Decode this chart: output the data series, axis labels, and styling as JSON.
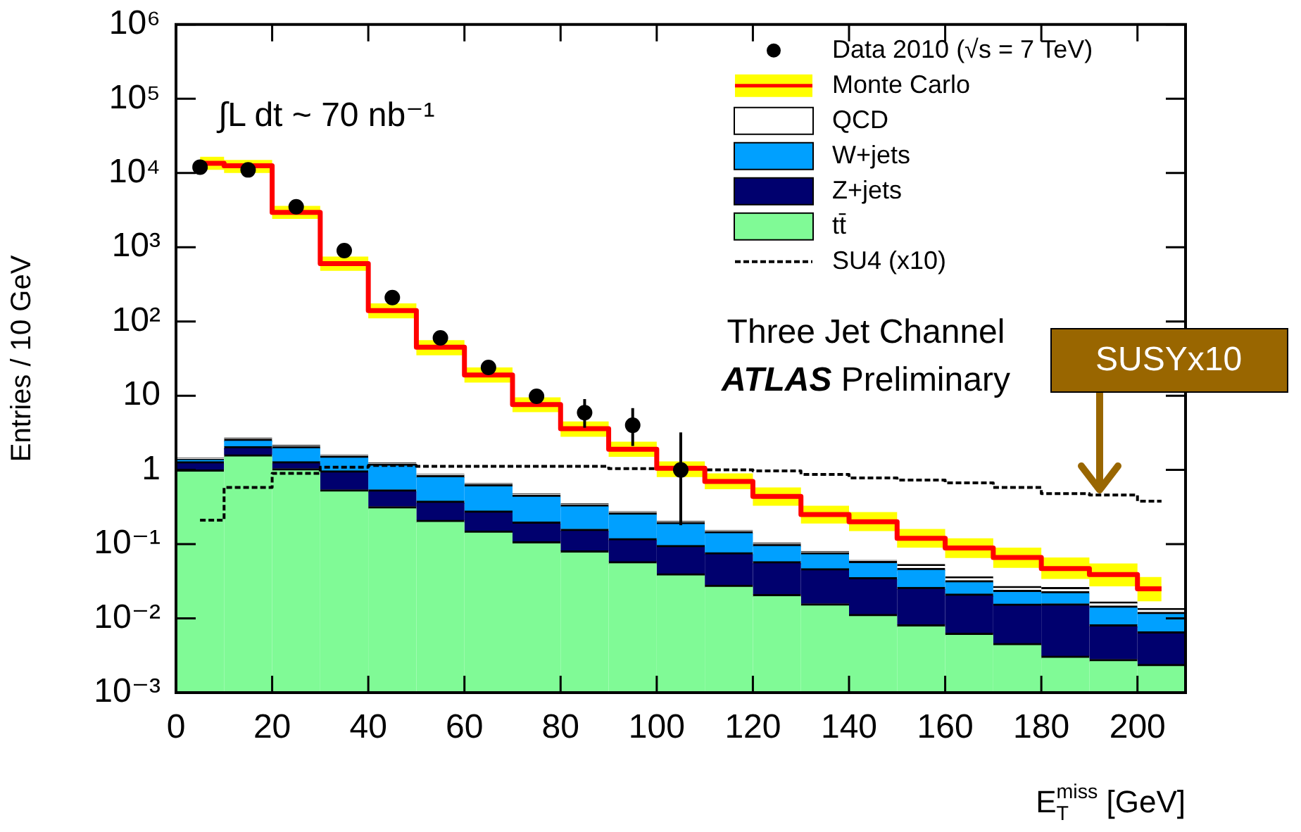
{
  "chart_data": {
    "type": "bar",
    "stacked": true,
    "xlabel": "E$_{T}$$^{miss}$ [GeV]",
    "ylabel": "Entries / 10 GeV",
    "log": "y",
    "legend": "top right",
    "x": [
      5,
      15,
      25,
      35,
      45,
      55,
      65,
      75,
      85,
      95,
      105,
      115,
      125,
      135,
      145,
      155,
      165,
      175,
      185,
      195,
      205
    ],
    "xlim": [
      0,
      210
    ],
    "xticks": [
      0,
      20,
      40,
      60,
      80,
      100,
      120,
      140,
      160,
      180,
      200
    ],
    "ylim": [
      0.001,
      1000000
    ],
    "yticks": [
      {
        "value": 0.001,
        "label": "10⁻³"
      },
      {
        "value": 0.01,
        "label": "10⁻²"
      },
      {
        "value": 0.1,
        "label": "10⁻¹"
      },
      1,
      10,
      {
        "value": 100,
        "label": "10²"
      },
      {
        "value": 1000,
        "label": "10³"
      },
      {
        "value": 10000,
        "label": "10⁴"
      },
      {
        "value": 100000,
        "label": "10⁵"
      },
      {
        "value": 1000000,
        "label": "10⁶"
      }
    ],
    "annotations": [
      "∫L dt ~ 70 nb⁻¹",
      "Three Jet Channel",
      "ATLAS Preliminary",
      {
        "text": "SUSYx10",
        "x": 192,
        "y": 0.47
      }
    ],
    "series": [
      {
        "name": "Data 2010 (√s = 7 TeV)",
        "type": "scatter",
        "marker": "circle",
        "color": "#000000",
        "values": [
          12000,
          11000,
          3500,
          900,
          210,
          60,
          24,
          9.8,
          5.9,
          4.0,
          1.0,
          null,
          null,
          null,
          null,
          null,
          null,
          null,
          null,
          null,
          null
        ],
        "errors": [
          null,
          null,
          null,
          null,
          null,
          null,
          null,
          null,
          [
            3.7,
            9.0
          ],
          [
            2.1,
            6.8
          ],
          [
            0.18,
            3.2
          ],
          null,
          null,
          null,
          null,
          null,
          null,
          null,
          null,
          null,
          null
        ]
      },
      {
        "name": "Monte Carlo",
        "type": "step",
        "color": "#ff0000",
        "values": [
          13500,
          12500,
          2950,
          600,
          140,
          45,
          19,
          7.6,
          3.6,
          1.9,
          1.05,
          0.7,
          0.44,
          0.25,
          0.2,
          0.12,
          0.089,
          0.066,
          0.047,
          0.039,
          0.025
        ],
        "lower": [
          11000,
          10000,
          2400,
          480,
          110,
          35,
          15,
          6,
          2.8,
          1.5,
          0.8,
          0.55,
          0.33,
          0.19,
          0.15,
          0.09,
          0.065,
          0.048,
          0.034,
          0.027,
          0.017
        ],
        "upper": [
          16500,
          15000,
          3600,
          750,
          175,
          56,
          24,
          9.5,
          4.5,
          2.4,
          1.3,
          0.9,
          0.58,
          0.33,
          0.27,
          0.16,
          0.12,
          0.09,
          0.066,
          0.055,
          0.036
        ]
      },
      {
        "name": "tt̄",
        "color": "#80fa96",
        "values": [
          1.0,
          1.6,
          1.04,
          0.54,
          0.32,
          0.21,
          0.15,
          0.108,
          0.081,
          0.058,
          0.04,
          0.028,
          0.021,
          0.0157,
          0.0113,
          0.0082,
          0.0063,
          0.0046,
          0.0031,
          0.0028,
          0.0024
        ]
      },
      {
        "name": "Z+jets",
        "color": "#00006e",
        "values": [
          0.29,
          0.46,
          0.25,
          0.43,
          0.22,
          0.17,
          0.13,
          0.09,
          0.078,
          0.061,
          0.056,
          0.049,
          0.037,
          0.031,
          0.024,
          0.018,
          0.015,
          0.011,
          0.0126,
          0.0054,
          0.0042
        ]
      },
      {
        "name": "W+jets",
        "color": "#00a0ff",
        "values": [
          0.1,
          0.53,
          0.77,
          0.57,
          0.66,
          0.46,
          0.35,
          0.26,
          0.18,
          0.145,
          0.1,
          0.071,
          0.041,
          0.03,
          0.023,
          0.021,
          0.011,
          0.0083,
          0.0073,
          0.0065,
          0.0055
        ]
      },
      {
        "name": "QCD",
        "color": "#ffffff",
        "values": [
          0.05,
          0.1,
          0.08,
          0.06,
          0.05,
          0.03,
          0.025,
          0.018,
          0.013,
          0.01,
          0.008,
          0.006,
          0.004,
          0.003,
          0.002,
          0.006,
          0.004,
          0.003,
          0.003,
          0.002,
          0.0015
        ]
      },
      {
        "name": "SU4 (x10)",
        "type": "step",
        "line_style": "dashed",
        "color": "#000000",
        "values": [
          0.21,
          0.58,
          0.9,
          1.09,
          1.15,
          1.12,
          1.12,
          1.12,
          1.12,
          1.04,
          1.04,
          1.0,
          0.97,
          0.87,
          0.78,
          0.73,
          0.67,
          0.58,
          0.48,
          0.46,
          0.38
        ]
      }
    ]
  }
}
